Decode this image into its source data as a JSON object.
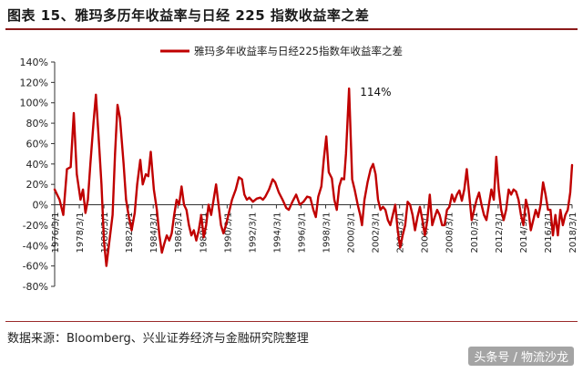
{
  "header": {
    "title": "图表 15、雅玛多历年收益率与日经 225 指数收益率之差"
  },
  "footer": {
    "source": "数据来源：Bloomberg、兴业证券经济与金融研究院整理",
    "watermark": "头条号 / 物流沙龙"
  },
  "colors": {
    "series": "#c00000",
    "rule": "#8b1a1a"
  },
  "chart_data": {
    "type": "line",
    "title": "",
    "xlabel": "",
    "ylabel": "",
    "legend": {
      "position": "top-center",
      "entries": [
        "雅玛多年收益率与日经225指数年收益率之差"
      ]
    },
    "ylim": [
      -0.8,
      1.4
    ],
    "yticks": [
      1.4,
      1.2,
      1.0,
      0.8,
      0.6,
      0.4,
      0.2,
      0.0,
      -0.2,
      -0.4,
      -0.6,
      -0.8
    ],
    "ytick_labels": [
      "140%",
      "120%",
      "100%",
      "80%",
      "60%",
      "40%",
      "20%",
      "0%",
      "-20%",
      "-40%",
      "-60%",
      "-80%"
    ],
    "xticks": [
      "1976/3/1",
      "1978/3/1",
      "1980/3/1",
      "1982/3/1",
      "1984/3/1",
      "1986/3/1",
      "1988/3/1",
      "1990/3/1",
      "1992/3/1",
      "1994/3/1",
      "1996/3/1",
      "1998/3/1",
      "2000/3/1",
      "2002/3/1",
      "2004/3/1",
      "2006/3/1",
      "2008/3/1",
      "2010/3/1",
      "2012/3/1",
      "2014/3/1",
      "2016/3/1",
      "2018/3/1"
    ],
    "xlim": [
      1976.2,
      2018.2
    ],
    "grid": false,
    "annotations": [
      {
        "text": "114%",
        "x": 2000.1,
        "y": 1.14
      }
    ],
    "series": [
      {
        "name": "雅玛多年收益率与日经225指数年收益率之差",
        "points": [
          [
            1976.2,
            0.15
          ],
          [
            1976.6,
            0.05
          ],
          [
            1976.9,
            -0.1
          ],
          [
            1977.2,
            0.35
          ],
          [
            1977.5,
            0.37
          ],
          [
            1977.75,
            0.9
          ],
          [
            1978.0,
            0.3
          ],
          [
            1978.3,
            0.05
          ],
          [
            1978.5,
            0.15
          ],
          [
            1978.7,
            -0.08
          ],
          [
            1978.9,
            0.05
          ],
          [
            1979.1,
            0.4
          ],
          [
            1979.35,
            0.8
          ],
          [
            1979.55,
            1.08
          ],
          [
            1979.8,
            0.6
          ],
          [
            1980.0,
            0.2
          ],
          [
            1980.2,
            -0.35
          ],
          [
            1980.4,
            -0.6
          ],
          [
            1980.6,
            -0.4
          ],
          [
            1980.9,
            -0.1
          ],
          [
            1981.1,
            0.5
          ],
          [
            1981.3,
            0.98
          ],
          [
            1981.5,
            0.85
          ],
          [
            1981.8,
            0.4
          ],
          [
            1982.0,
            0.05
          ],
          [
            1982.2,
            -0.1
          ],
          [
            1982.45,
            -0.25
          ],
          [
            1982.7,
            -0.08
          ],
          [
            1982.9,
            0.2
          ],
          [
            1983.15,
            0.44
          ],
          [
            1983.35,
            0.2
          ],
          [
            1983.6,
            0.3
          ],
          [
            1983.8,
            0.28
          ],
          [
            1984.0,
            0.52
          ],
          [
            1984.25,
            0.15
          ],
          [
            1984.5,
            -0.05
          ],
          [
            1984.7,
            -0.3
          ],
          [
            1984.9,
            -0.47
          ],
          [
            1985.1,
            -0.38
          ],
          [
            1985.3,
            -0.3
          ],
          [
            1985.5,
            -0.35
          ],
          [
            1985.7,
            -0.28
          ],
          [
            1985.9,
            -0.1
          ],
          [
            1986.1,
            0.05
          ],
          [
            1986.3,
            0.0
          ],
          [
            1986.5,
            0.18
          ],
          [
            1986.7,
            0.0
          ],
          [
            1986.9,
            -0.05
          ],
          [
            1987.1,
            -0.2
          ],
          [
            1987.3,
            -0.3
          ],
          [
            1987.5,
            -0.25
          ],
          [
            1987.7,
            -0.35
          ],
          [
            1987.9,
            -0.25
          ],
          [
            1988.1,
            -0.1
          ],
          [
            1988.3,
            -0.32
          ],
          [
            1988.5,
            -0.2
          ],
          [
            1988.7,
            0.0
          ],
          [
            1988.9,
            -0.1
          ],
          [
            1989.1,
            0.05
          ],
          [
            1989.3,
            0.2
          ],
          [
            1989.5,
            0.0
          ],
          [
            1989.7,
            -0.2
          ],
          [
            1989.9,
            -0.28
          ],
          [
            1990.1,
            -0.2
          ],
          [
            1990.3,
            -0.1
          ],
          [
            1990.6,
            0.05
          ],
          [
            1990.9,
            0.15
          ],
          [
            1991.15,
            0.27
          ],
          [
            1991.4,
            0.25
          ],
          [
            1991.6,
            0.1
          ],
          [
            1991.8,
            0.05
          ],
          [
            1992.0,
            0.07
          ],
          [
            1992.3,
            0.03
          ],
          [
            1992.6,
            0.06
          ],
          [
            1992.9,
            0.07
          ],
          [
            1993.1,
            0.05
          ],
          [
            1993.3,
            0.08
          ],
          [
            1993.6,
            0.15
          ],
          [
            1993.9,
            0.25
          ],
          [
            1994.1,
            0.22
          ],
          [
            1994.4,
            0.12
          ],
          [
            1994.7,
            0.05
          ],
          [
            1995.0,
            -0.03
          ],
          [
            1995.2,
            -0.05
          ],
          [
            1995.5,
            0.03
          ],
          [
            1995.8,
            0.1
          ],
          [
            1996.1,
            0.0
          ],
          [
            1996.4,
            0.03
          ],
          [
            1996.7,
            0.08
          ],
          [
            1996.95,
            0.07
          ],
          [
            1997.2,
            -0.05
          ],
          [
            1997.4,
            -0.12
          ],
          [
            1997.6,
            0.08
          ],
          [
            1997.85,
            0.18
          ],
          [
            1998.05,
            0.45
          ],
          [
            1998.25,
            0.67
          ],
          [
            1998.45,
            0.32
          ],
          [
            1998.7,
            0.26
          ],
          [
            1998.9,
            0.05
          ],
          [
            1999.1,
            -0.05
          ],
          [
            1999.3,
            0.18
          ],
          [
            1999.5,
            0.26
          ],
          [
            1999.7,
            0.25
          ],
          [
            1999.85,
            0.5
          ],
          [
            2000.1,
            1.14
          ],
          [
            2000.35,
            0.25
          ],
          [
            2000.55,
            0.15
          ],
          [
            2000.8,
            0.0
          ],
          [
            2001.0,
            -0.1
          ],
          [
            2001.15,
            -0.2
          ],
          [
            2001.35,
            0.05
          ],
          [
            2001.6,
            0.22
          ],
          [
            2001.85,
            0.35
          ],
          [
            2002.05,
            0.4
          ],
          [
            2002.25,
            0.3
          ],
          [
            2002.45,
            0.05
          ],
          [
            2002.65,
            -0.05
          ],
          [
            2002.85,
            -0.02
          ],
          [
            2003.05,
            -0.05
          ],
          [
            2003.25,
            -0.15
          ],
          [
            2003.45,
            -0.2
          ],
          [
            2003.65,
            -0.1
          ],
          [
            2003.85,
            0.0
          ],
          [
            2004.05,
            -0.25
          ],
          [
            2004.25,
            -0.42
          ],
          [
            2004.45,
            -0.3
          ],
          [
            2004.65,
            -0.2
          ],
          [
            2004.85,
            0.03
          ],
          [
            2005.05,
            0.0
          ],
          [
            2005.25,
            -0.1
          ],
          [
            2005.45,
            -0.25
          ],
          [
            2005.65,
            -0.12
          ],
          [
            2005.85,
            -0.02
          ],
          [
            2006.05,
            -0.15
          ],
          [
            2006.25,
            -0.3
          ],
          [
            2006.45,
            -0.15
          ],
          [
            2006.65,
            0.1
          ],
          [
            2006.85,
            -0.2
          ],
          [
            2007.05,
            -0.12
          ],
          [
            2007.25,
            -0.05
          ],
          [
            2007.45,
            -0.1
          ],
          [
            2007.65,
            -0.2
          ],
          [
            2007.85,
            -0.2
          ],
          [
            2008.05,
            -0.05
          ],
          [
            2008.25,
            -0.02
          ],
          [
            2008.45,
            0.1
          ],
          [
            2008.65,
            0.03
          ],
          [
            2008.85,
            0.1
          ],
          [
            2009.05,
            0.14
          ],
          [
            2009.25,
            0.04
          ],
          [
            2009.45,
            0.15
          ],
          [
            2009.65,
            0.35
          ],
          [
            2009.85,
            0.1
          ],
          [
            2010.05,
            -0.15
          ],
          [
            2010.25,
            -0.05
          ],
          [
            2010.45,
            0.05
          ],
          [
            2010.65,
            0.12
          ],
          [
            2010.85,
            0.0
          ],
          [
            2011.05,
            -0.1
          ],
          [
            2011.25,
            -0.15
          ],
          [
            2011.45,
            0.0
          ],
          [
            2011.65,
            0.15
          ],
          [
            2011.85,
            0.05
          ],
          [
            2012.05,
            0.47
          ],
          [
            2012.25,
            0.15
          ],
          [
            2012.45,
            -0.05
          ],
          [
            2012.65,
            -0.15
          ],
          [
            2012.85,
            -0.05
          ],
          [
            2013.05,
            0.15
          ],
          [
            2013.25,
            0.1
          ],
          [
            2013.45,
            0.15
          ],
          [
            2013.65,
            0.13
          ],
          [
            2013.85,
            0.05
          ],
          [
            2014.05,
            -0.1
          ],
          [
            2014.25,
            -0.2
          ],
          [
            2014.45,
            0.05
          ],
          [
            2014.65,
            -0.05
          ],
          [
            2014.85,
            -0.25
          ],
          [
            2015.05,
            -0.15
          ],
          [
            2015.25,
            -0.05
          ],
          [
            2015.45,
            -0.12
          ],
          [
            2015.65,
            0.0
          ],
          [
            2015.85,
            0.22
          ],
          [
            2016.05,
            0.1
          ],
          [
            2016.25,
            -0.05
          ],
          [
            2016.45,
            -0.05
          ],
          [
            2016.65,
            -0.3
          ],
          [
            2016.85,
            -0.1
          ],
          [
            2017.05,
            -0.3
          ],
          [
            2017.25,
            -0.05
          ],
          [
            2017.45,
            -0.2
          ],
          [
            2017.65,
            -0.1
          ],
          [
            2017.85,
            -0.05
          ],
          [
            2018.05,
            0.12
          ],
          [
            2018.2,
            0.39
          ]
        ]
      }
    ]
  }
}
